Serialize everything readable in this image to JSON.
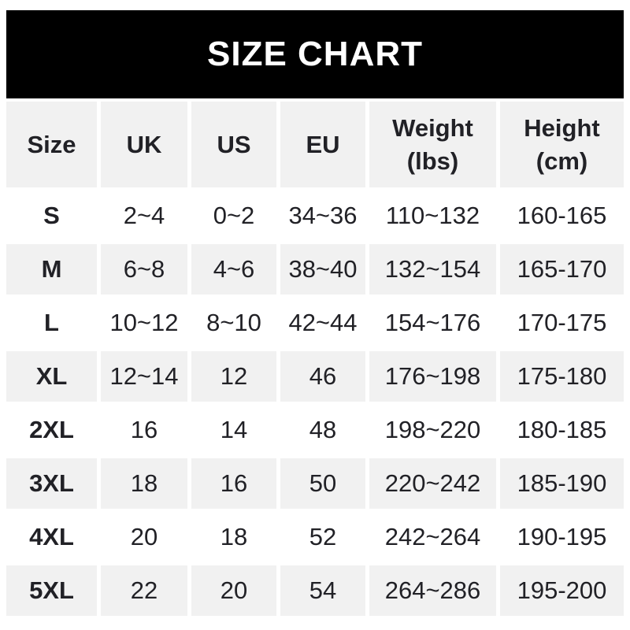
{
  "banner": {
    "title": "SIZE CHART"
  },
  "colors": {
    "banner_bg": "#000000",
    "banner_text": "#ffffff",
    "header_row_bg": "#f1f1f1",
    "row_alt_bg": "#f1f1f1",
    "row_bg": "#ffffff",
    "text": "#212126",
    "page_bg": "#ffffff"
  },
  "chart_data": {
    "type": "table",
    "title": "SIZE CHART",
    "headers": [
      "Size",
      "UK",
      "US",
      "EU",
      "Weight\n(lbs)",
      "Height\n(cm)"
    ],
    "rows": [
      [
        "S",
        "2~4",
        "0~2",
        "34~36",
        "110~132",
        "160-165"
      ],
      [
        "M",
        "6~8",
        "4~6",
        "38~40",
        "132~154",
        "165-170"
      ],
      [
        "L",
        "10~12",
        "8~10",
        "42~44",
        "154~176",
        "170-175"
      ],
      [
        "XL",
        "12~14",
        "12",
        "46",
        "176~198",
        "175-180"
      ],
      [
        "2XL",
        "16",
        "14",
        "48",
        "198~220",
        "180-185"
      ],
      [
        "3XL",
        "18",
        "16",
        "50",
        "220~242",
        "185-190"
      ],
      [
        "4XL",
        "20",
        "18",
        "52",
        "242~264",
        "190-195"
      ],
      [
        "5XL",
        "22",
        "20",
        "54",
        "264~286",
        "195-200"
      ]
    ],
    "layout": {
      "legend": "none",
      "grid": "off",
      "row_striping": "alternating white and light gray, header gray"
    }
  }
}
